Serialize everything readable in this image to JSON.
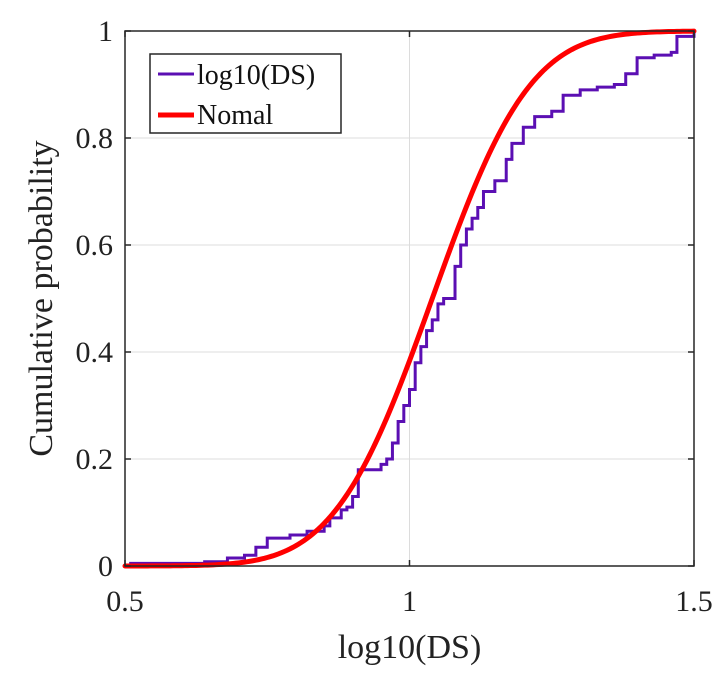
{
  "chart_data": {
    "type": "line",
    "title": "",
    "xlabel": "log10(DS)",
    "ylabel": "Cumulative probability",
    "xlim": [
      0.5,
      1.5
    ],
    "ylim": [
      0,
      1
    ],
    "grid": true,
    "legend_position": "top-left",
    "x_ticks": [
      0.5,
      1,
      1.5
    ],
    "x_tick_labels": [
      "0.5",
      "1",
      "1.5"
    ],
    "y_ticks": [
      0,
      0.2,
      0.4,
      0.6,
      0.8,
      1
    ],
    "y_tick_labels": [
      "0",
      "0.2",
      "0.4",
      "0.6",
      "0.8",
      "1"
    ],
    "series": [
      {
        "name": "log10(DS)",
        "style": "step",
        "color": "#5b0fb3",
        "x": [
          0.5,
          0.51,
          0.64,
          0.68,
          0.71,
          0.73,
          0.75,
          0.79,
          0.82,
          0.85,
          0.86,
          0.88,
          0.89,
          0.9,
          0.91,
          0.95,
          0.96,
          0.97,
          0.98,
          0.99,
          1.0,
          1.01,
          1.02,
          1.03,
          1.04,
          1.05,
          1.06,
          1.08,
          1.09,
          1.1,
          1.11,
          1.12,
          1.13,
          1.15,
          1.17,
          1.18,
          1.2,
          1.22,
          1.25,
          1.27,
          1.3,
          1.33,
          1.36,
          1.38,
          1.4,
          1.43,
          1.46,
          1.47,
          1.5
        ],
        "y": [
          0.0,
          0.005,
          0.008,
          0.015,
          0.02,
          0.035,
          0.052,
          0.058,
          0.065,
          0.075,
          0.09,
          0.105,
          0.11,
          0.13,
          0.18,
          0.19,
          0.2,
          0.23,
          0.27,
          0.3,
          0.33,
          0.38,
          0.41,
          0.44,
          0.46,
          0.49,
          0.5,
          0.56,
          0.6,
          0.63,
          0.65,
          0.67,
          0.7,
          0.72,
          0.76,
          0.79,
          0.82,
          0.84,
          0.85,
          0.88,
          0.89,
          0.895,
          0.9,
          0.92,
          0.95,
          0.955,
          0.96,
          0.99,
          1.0
        ]
      },
      {
        "name": "Nomal",
        "style": "normal-cdf",
        "color": "#ff0000",
        "mu": 1.04,
        "sigma": 0.135
      }
    ]
  }
}
